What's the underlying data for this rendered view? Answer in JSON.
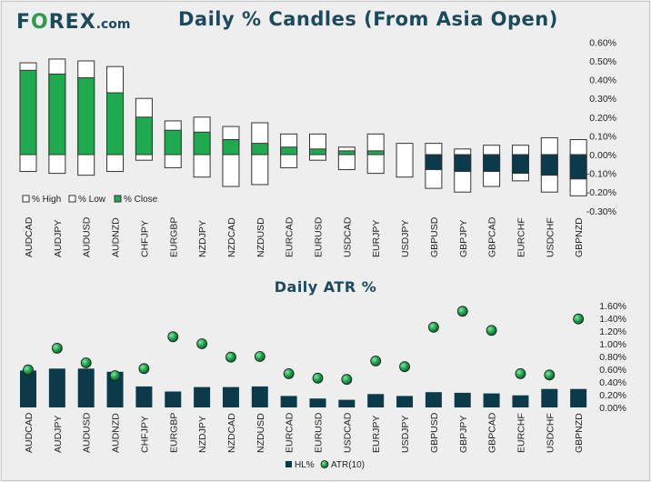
{
  "logo": {
    "part1": "F",
    "part2": "O",
    "part3": "REX",
    "part4": ".com"
  },
  "chart_data": [
    {
      "type": "candlestick-range",
      "title": "Daily % Candles (From Asia Open)",
      "categories": [
        "AUDCAD",
        "AUDJPY",
        "AUDUSD",
        "AUDNZD",
        "CHFJPY",
        "EURGBP",
        "NZDJPY",
        "NZDCAD",
        "NZDUSD",
        "EURCAD",
        "EURUSD",
        "USDCAD",
        "EURJPY",
        "USDJPY",
        "GBPUSD",
        "GBPJPY",
        "GBPCAD",
        "EURCHF",
        "USDCHF",
        "GBPNZD"
      ],
      "series": [
        {
          "name": "% High",
          "values": [
            0.49,
            0.51,
            0.5,
            0.47,
            0.3,
            0.18,
            0.2,
            0.15,
            0.17,
            0.11,
            0.11,
            0.04,
            0.11,
            0.06,
            0.06,
            0.03,
            0.05,
            0.05,
            0.09,
            0.08
          ]
        },
        {
          "name": "% Low",
          "values": [
            -0.09,
            -0.1,
            -0.11,
            -0.09,
            -0.03,
            -0.07,
            -0.12,
            -0.17,
            -0.16,
            -0.07,
            -0.03,
            -0.08,
            -0.1,
            -0.12,
            -0.18,
            -0.2,
            -0.17,
            -0.14,
            -0.2,
            -0.22
          ]
        },
        {
          "name": "% Close",
          "values": [
            0.45,
            0.43,
            0.41,
            0.33,
            0.2,
            0.13,
            0.12,
            0.08,
            0.06,
            0.04,
            0.03,
            0.02,
            0.02,
            0.0,
            -0.08,
            -0.09,
            -0.09,
            -0.1,
            -0.11,
            -0.13
          ]
        }
      ],
      "yticks": [
        "0.60%",
        "0.50%",
        "0.40%",
        "0.30%",
        "0.20%",
        "0.10%",
        "0.00%",
        "-0.10%",
        "-0.20%",
        "-0.30%"
      ],
      "ylim": [
        -0.3,
        0.6
      ],
      "legend": [
        "% High",
        "% Low",
        "% Close"
      ],
      "legend_position": "bottom-left",
      "colors": {
        "up": "#1faa4f",
        "down": "#0b3a4b",
        "range": "#ffffff"
      }
    },
    {
      "type": "bar+scatter",
      "title": "Daily ATR %",
      "categories": [
        "AUDCAD",
        "AUDJPY",
        "AUDUSD",
        "AUDNZD",
        "CHFJPY",
        "EURGBP",
        "NZDJPY",
        "NZDCAD",
        "NZDUSD",
        "EURCAD",
        "EURUSD",
        "USDCAD",
        "EURJPY",
        "USDJPY",
        "GBPUSD",
        "GBPJPY",
        "GBPCAD",
        "EURCHF",
        "USDCHF",
        "GBPNZD"
      ],
      "series": [
        {
          "name": "HL%",
          "type": "bar",
          "values": [
            0.58,
            0.61,
            0.61,
            0.56,
            0.33,
            0.25,
            0.32,
            0.32,
            0.33,
            0.18,
            0.14,
            0.12,
            0.21,
            0.18,
            0.24,
            0.23,
            0.22,
            0.19,
            0.29,
            0.29
          ]
        },
        {
          "name": "ATR(10)",
          "type": "scatter",
          "values": [
            0.59,
            0.93,
            0.7,
            0.5,
            0.61,
            1.11,
            1.0,
            0.79,
            0.8,
            0.53,
            0.46,
            0.44,
            0.73,
            0.64,
            1.26,
            1.51,
            1.21,
            0.53,
            0.51,
            1.39
          ]
        }
      ],
      "yticks": [
        "1.60%",
        "1.40%",
        "1.20%",
        "1.00%",
        "0.80%",
        "0.60%",
        "0.40%",
        "0.20%",
        "0.00%"
      ],
      "ylim": [
        0,
        1.6
      ],
      "legend": [
        "HL%",
        "ATR(10)"
      ],
      "legend_position": "bottom-center",
      "colors": {
        "bar": "#0b3a4b",
        "dot": "#1faa4f"
      }
    }
  ]
}
